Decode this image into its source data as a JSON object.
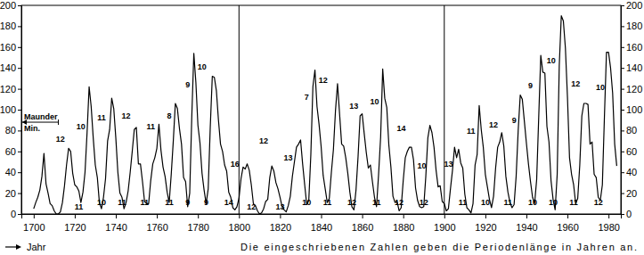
{
  "chart_data": {
    "type": "line",
    "color": "#000000",
    "x_label": "Jahr",
    "note": "Die eingeschriebenen Zahlen geben die Periodenlänge in Jahren an.",
    "xlim": [
      1694,
      1986
    ],
    "ylim": [
      0,
      200
    ],
    "xticks": [
      1700,
      1720,
      1740,
      1760,
      1780,
      1800,
      1820,
      1840,
      1860,
      1880,
      1900,
      1920,
      1940,
      1960,
      1980
    ],
    "yticks": [
      0,
      20,
      40,
      60,
      80,
      100,
      120,
      140,
      160,
      180,
      200
    ],
    "vlines": [
      1800,
      1900
    ],
    "maunder": {
      "lines": [
        "Maunder",
        "Min."
      ],
      "x_start": 1694,
      "x_end": 1712,
      "y": 88
    },
    "x": [
      1700,
      1701,
      1702,
      1703,
      1704,
      1705,
      1706,
      1707,
      1708,
      1709,
      1710,
      1711,
      1712,
      1713,
      1714,
      1715,
      1716,
      1717,
      1718,
      1719,
      1720,
      1721,
      1722,
      1723,
      1724,
      1725,
      1726,
      1727,
      1728,
      1729,
      1730,
      1731,
      1732,
      1733,
      1734,
      1735,
      1736,
      1737,
      1738,
      1739,
      1740,
      1741,
      1742,
      1743,
      1744,
      1745,
      1746,
      1747,
      1748,
      1749,
      1750,
      1751,
      1752,
      1753,
      1754,
      1755,
      1756,
      1757,
      1758,
      1759,
      1760,
      1761,
      1762,
      1763,
      1764,
      1765,
      1766,
      1767,
      1768,
      1769,
      1770,
      1771,
      1772,
      1773,
      1774,
      1775,
      1776,
      1777,
      1778,
      1779,
      1780,
      1781,
      1782,
      1783,
      1784,
      1785,
      1786,
      1787,
      1788,
      1789,
      1790,
      1791,
      1792,
      1793,
      1794,
      1795,
      1796,
      1797,
      1798,
      1799,
      1800,
      1801,
      1802,
      1803,
      1804,
      1805,
      1806,
      1807,
      1808,
      1809,
      1810,
      1811,
      1812,
      1813,
      1814,
      1815,
      1816,
      1817,
      1818,
      1819,
      1820,
      1821,
      1822,
      1823,
      1824,
      1825,
      1826,
      1827,
      1828,
      1829,
      1830,
      1831,
      1832,
      1833,
      1834,
      1835,
      1836,
      1837,
      1838,
      1839,
      1840,
      1841,
      1842,
      1843,
      1844,
      1845,
      1846,
      1847,
      1848,
      1849,
      1850,
      1851,
      1852,
      1853,
      1854,
      1855,
      1856,
      1857,
      1858,
      1859,
      1860,
      1861,
      1862,
      1863,
      1864,
      1865,
      1866,
      1867,
      1868,
      1869,
      1870,
      1871,
      1872,
      1873,
      1874,
      1875,
      1876,
      1877,
      1878,
      1879,
      1880,
      1881,
      1882,
      1883,
      1884,
      1885,
      1886,
      1887,
      1888,
      1889,
      1890,
      1891,
      1892,
      1893,
      1894,
      1895,
      1896,
      1897,
      1898,
      1899,
      1900,
      1901,
      1902,
      1903,
      1904,
      1905,
      1906,
      1907,
      1908,
      1909,
      1910,
      1911,
      1912,
      1913,
      1914,
      1915,
      1916,
      1917,
      1918,
      1919,
      1920,
      1921,
      1922,
      1923,
      1924,
      1925,
      1926,
      1927,
      1928,
      1929,
      1930,
      1931,
      1932,
      1933,
      1934,
      1935,
      1936,
      1937,
      1938,
      1939,
      1940,
      1941,
      1942,
      1943,
      1944,
      1945,
      1946,
      1947,
      1948,
      1949,
      1950,
      1951,
      1952,
      1953,
      1954,
      1955,
      1956,
      1957,
      1958,
      1959,
      1960,
      1961,
      1962,
      1963,
      1964,
      1965,
      1966,
      1967,
      1968,
      1969,
      1970,
      1971,
      1972,
      1973,
      1974,
      1975,
      1976,
      1977,
      1978,
      1979,
      1980,
      1981,
      1982,
      1983,
      1984
    ],
    "values": [
      5,
      11,
      16,
      23,
      36,
      58,
      29,
      20,
      10,
      8,
      3,
      0,
      0,
      2,
      11,
      27,
      47,
      63,
      60,
      39,
      28,
      26,
      22,
      11,
      21,
      40,
      78,
      122,
      103,
      73,
      47,
      35,
      11,
      5,
      16,
      34,
      70,
      81,
      111,
      101,
      73,
      40,
      20,
      16,
      5,
      11,
      22,
      40,
      60,
      81,
      83,
      48,
      48,
      31,
      12,
      10,
      10,
      32,
      48,
      54,
      63,
      86,
      61,
      45,
      36,
      21,
      11,
      38,
      70,
      106,
      101,
      82,
      67,
      35,
      31,
      7,
      20,
      93,
      154,
      126,
      85,
      68,
      39,
      23,
      10,
      24,
      83,
      132,
      131,
      118,
      90,
      67,
      60,
      47,
      41,
      21,
      16,
      6,
      4,
      7,
      15,
      34,
      45,
      43,
      48,
      42,
      28,
      10,
      8,
      3,
      0,
      1,
      5,
      12,
      14,
      35,
      46,
      41,
      30,
      24,
      16,
      7,
      4,
      2,
      8,
      17,
      36,
      50,
      64,
      67,
      71,
      48,
      28,
      9,
      13,
      57,
      122,
      138,
      103,
      86,
      65,
      37,
      24,
      11,
      15,
      40,
      62,
      99,
      125,
      96,
      67,
      65,
      54,
      39,
      21,
      7,
      4,
      23,
      55,
      94,
      96,
      77,
      59,
      44,
      47,
      31,
      16,
      7,
      38,
      74,
      139,
      111,
      102,
      66,
      45,
      17,
      11,
      12,
      3,
      6,
      32,
      54,
      60,
      64,
      64,
      52,
      25,
      13,
      7,
      6,
      7,
      36,
      73,
      85,
      78,
      64,
      42,
      26,
      27,
      12,
      10,
      3,
      5,
      24,
      42,
      64,
      54,
      62,
      49,
      44,
      19,
      6,
      4,
      1,
      10,
      47,
      57,
      104,
      81,
      64,
      38,
      26,
      14,
      6,
      17,
      44,
      64,
      69,
      78,
      65,
      36,
      21,
      11,
      6,
      9,
      36,
      80,
      114,
      110,
      89,
      68,
      48,
      31,
      16,
      10,
      33,
      93,
      152,
      136,
      135,
      84,
      69,
      32,
      14,
      4,
      38,
      142,
      190,
      185,
      159,
      112,
      54,
      38,
      28,
      10,
      15,
      47,
      94,
      106,
      106,
      105,
      67,
      69,
      38,
      35,
      16,
      13,
      28,
      93,
      155,
      155,
      140,
      116,
      67,
      46
    ],
    "annotations": [
      {
        "text": "12",
        "x": 1713,
        "y": 68
      },
      {
        "text": "10",
        "x": 1723,
        "y": 80
      },
      {
        "text": "11",
        "x": 1733,
        "y": 88
      },
      {
        "text": "12",
        "x": 1745,
        "y": 90
      },
      {
        "text": "11",
        "x": 1757,
        "y": 80
      },
      {
        "text": "8",
        "x": 1766,
        "y": 90
      },
      {
        "text": "9",
        "x": 1775,
        "y": 120
      },
      {
        "text": "10",
        "x": 1782,
        "y": 137
      },
      {
        "text": "16",
        "x": 1798,
        "y": 44
      },
      {
        "text": "12",
        "x": 1812,
        "y": 66
      },
      {
        "text": "13",
        "x": 1824,
        "y": 50
      },
      {
        "text": "7",
        "x": 1833,
        "y": 108
      },
      {
        "text": "12",
        "x": 1841,
        "y": 124
      },
      {
        "text": "13",
        "x": 1856,
        "y": 99
      },
      {
        "text": "10",
        "x": 1866,
        "y": 104
      },
      {
        "text": "14",
        "x": 1879,
        "y": 78
      },
      {
        "text": "10",
        "x": 1889,
        "y": 42
      },
      {
        "text": "13",
        "x": 1902,
        "y": 44
      },
      {
        "text": "11",
        "x": 1913,
        "y": 75
      },
      {
        "text": "12",
        "x": 1924,
        "y": 81
      },
      {
        "text": "9",
        "x": 1934,
        "y": 86
      },
      {
        "text": "9",
        "x": 1942,
        "y": 119
      },
      {
        "text": "10",
        "x": 1952,
        "y": 143
      },
      {
        "text": "12",
        "x": 1964,
        "y": 121
      },
      {
        "text": "10",
        "x": 1976,
        "y": 117
      },
      {
        "text": "11",
        "x": 1722,
        "y": 3
      },
      {
        "text": "10",
        "x": 1733,
        "y": 7
      },
      {
        "text": "11",
        "x": 1743,
        "y": 7
      },
      {
        "text": "11",
        "x": 1754,
        "y": 7
      },
      {
        "text": "11",
        "x": 1766,
        "y": 7
      },
      {
        "text": "9",
        "x": 1775,
        "y": 7
      },
      {
        "text": "9",
        "x": 1784,
        "y": 7
      },
      {
        "text": "14",
        "x": 1795,
        "y": 7
      },
      {
        "text": "12",
        "x": 1806,
        "y": 3
      },
      {
        "text": "13",
        "x": 1820,
        "y": 3
      },
      {
        "text": "10",
        "x": 1833,
        "y": 7
      },
      {
        "text": "11",
        "x": 1843,
        "y": 7
      },
      {
        "text": "12",
        "x": 1855,
        "y": 7
      },
      {
        "text": "11",
        "x": 1867,
        "y": 7
      },
      {
        "text": "12",
        "x": 1878,
        "y": 7
      },
      {
        "text": "12",
        "x": 1890,
        "y": 7
      },
      {
        "text": "11",
        "x": 1909,
        "y": 7
      },
      {
        "text": "10",
        "x": 1920,
        "y": 7
      },
      {
        "text": "11",
        "x": 1931,
        "y": 7
      },
      {
        "text": "10",
        "x": 1943,
        "y": 7
      },
      {
        "text": "10",
        "x": 1953,
        "y": 7
      },
      {
        "text": "11",
        "x": 1963,
        "y": 7
      },
      {
        "text": "12",
        "x": 1975,
        "y": 7
      }
    ]
  }
}
